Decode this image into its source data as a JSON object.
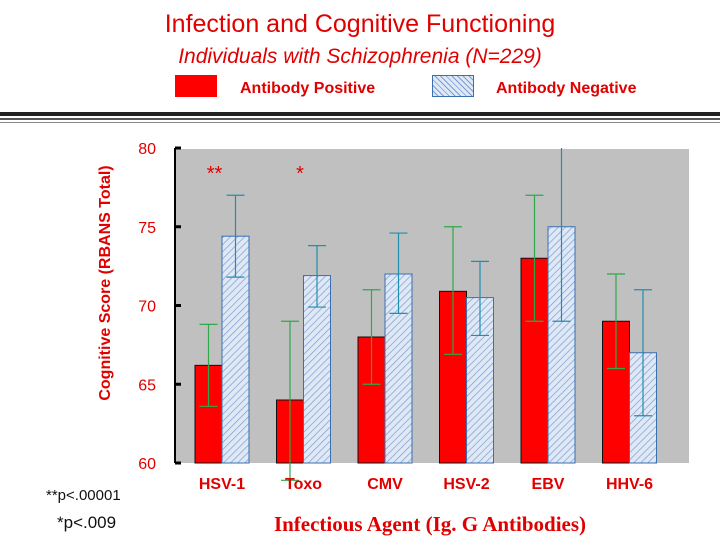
{
  "title": "Infection and Cognitive Functioning",
  "subtitle": "Individuals with Schizophrenia (N=229)",
  "footnotes": {
    "double": "**p<.00001",
    "single": "*p<.009"
  },
  "colors": {
    "positive": "#ff0000",
    "negative_hatch": "#7e9cd2",
    "plot_bg": "#c0c0c0",
    "text": "#e00000"
  },
  "chart_data": {
    "type": "bar",
    "title": "Infection and Cognitive Functioning",
    "xlabel": "Infectious Agent (Ig. G Antibodies)",
    "ylabel": "Cognitive Score (RBANS Total)",
    "ylim": [
      60,
      80
    ],
    "yticks": [
      "80",
      "75",
      "70",
      "65",
      "60"
    ],
    "legend": [
      "Antibody Positive",
      "Antibody Negative"
    ],
    "categories": [
      "HSV-1",
      "Toxo",
      "CMV",
      "HSV-2",
      "EBV",
      "HHV-6"
    ],
    "series": [
      {
        "name": "Antibody Positive",
        "values": [
          66.2,
          64.0,
          68.0,
          70.9,
          73.0,
          69.0
        ],
        "err_low": [
          63.6,
          58.9,
          65.0,
          66.9,
          69.0,
          66.0
        ],
        "err_high": [
          68.8,
          69.0,
          71.0,
          75.0,
          77.0,
          72.0
        ]
      },
      {
        "name": "Antibody Negative",
        "values": [
          74.4,
          71.9,
          72.0,
          70.5,
          75.0,
          67.0
        ],
        "err_low": [
          71.8,
          69.9,
          69.5,
          68.1,
          69.0,
          63.0
        ],
        "err_high": [
          77.0,
          73.8,
          74.6,
          72.8,
          80.5,
          71.0
        ]
      }
    ],
    "annotations": [
      {
        "category": "HSV-1",
        "text": "**"
      },
      {
        "category": "Toxo",
        "text": "*"
      }
    ]
  }
}
